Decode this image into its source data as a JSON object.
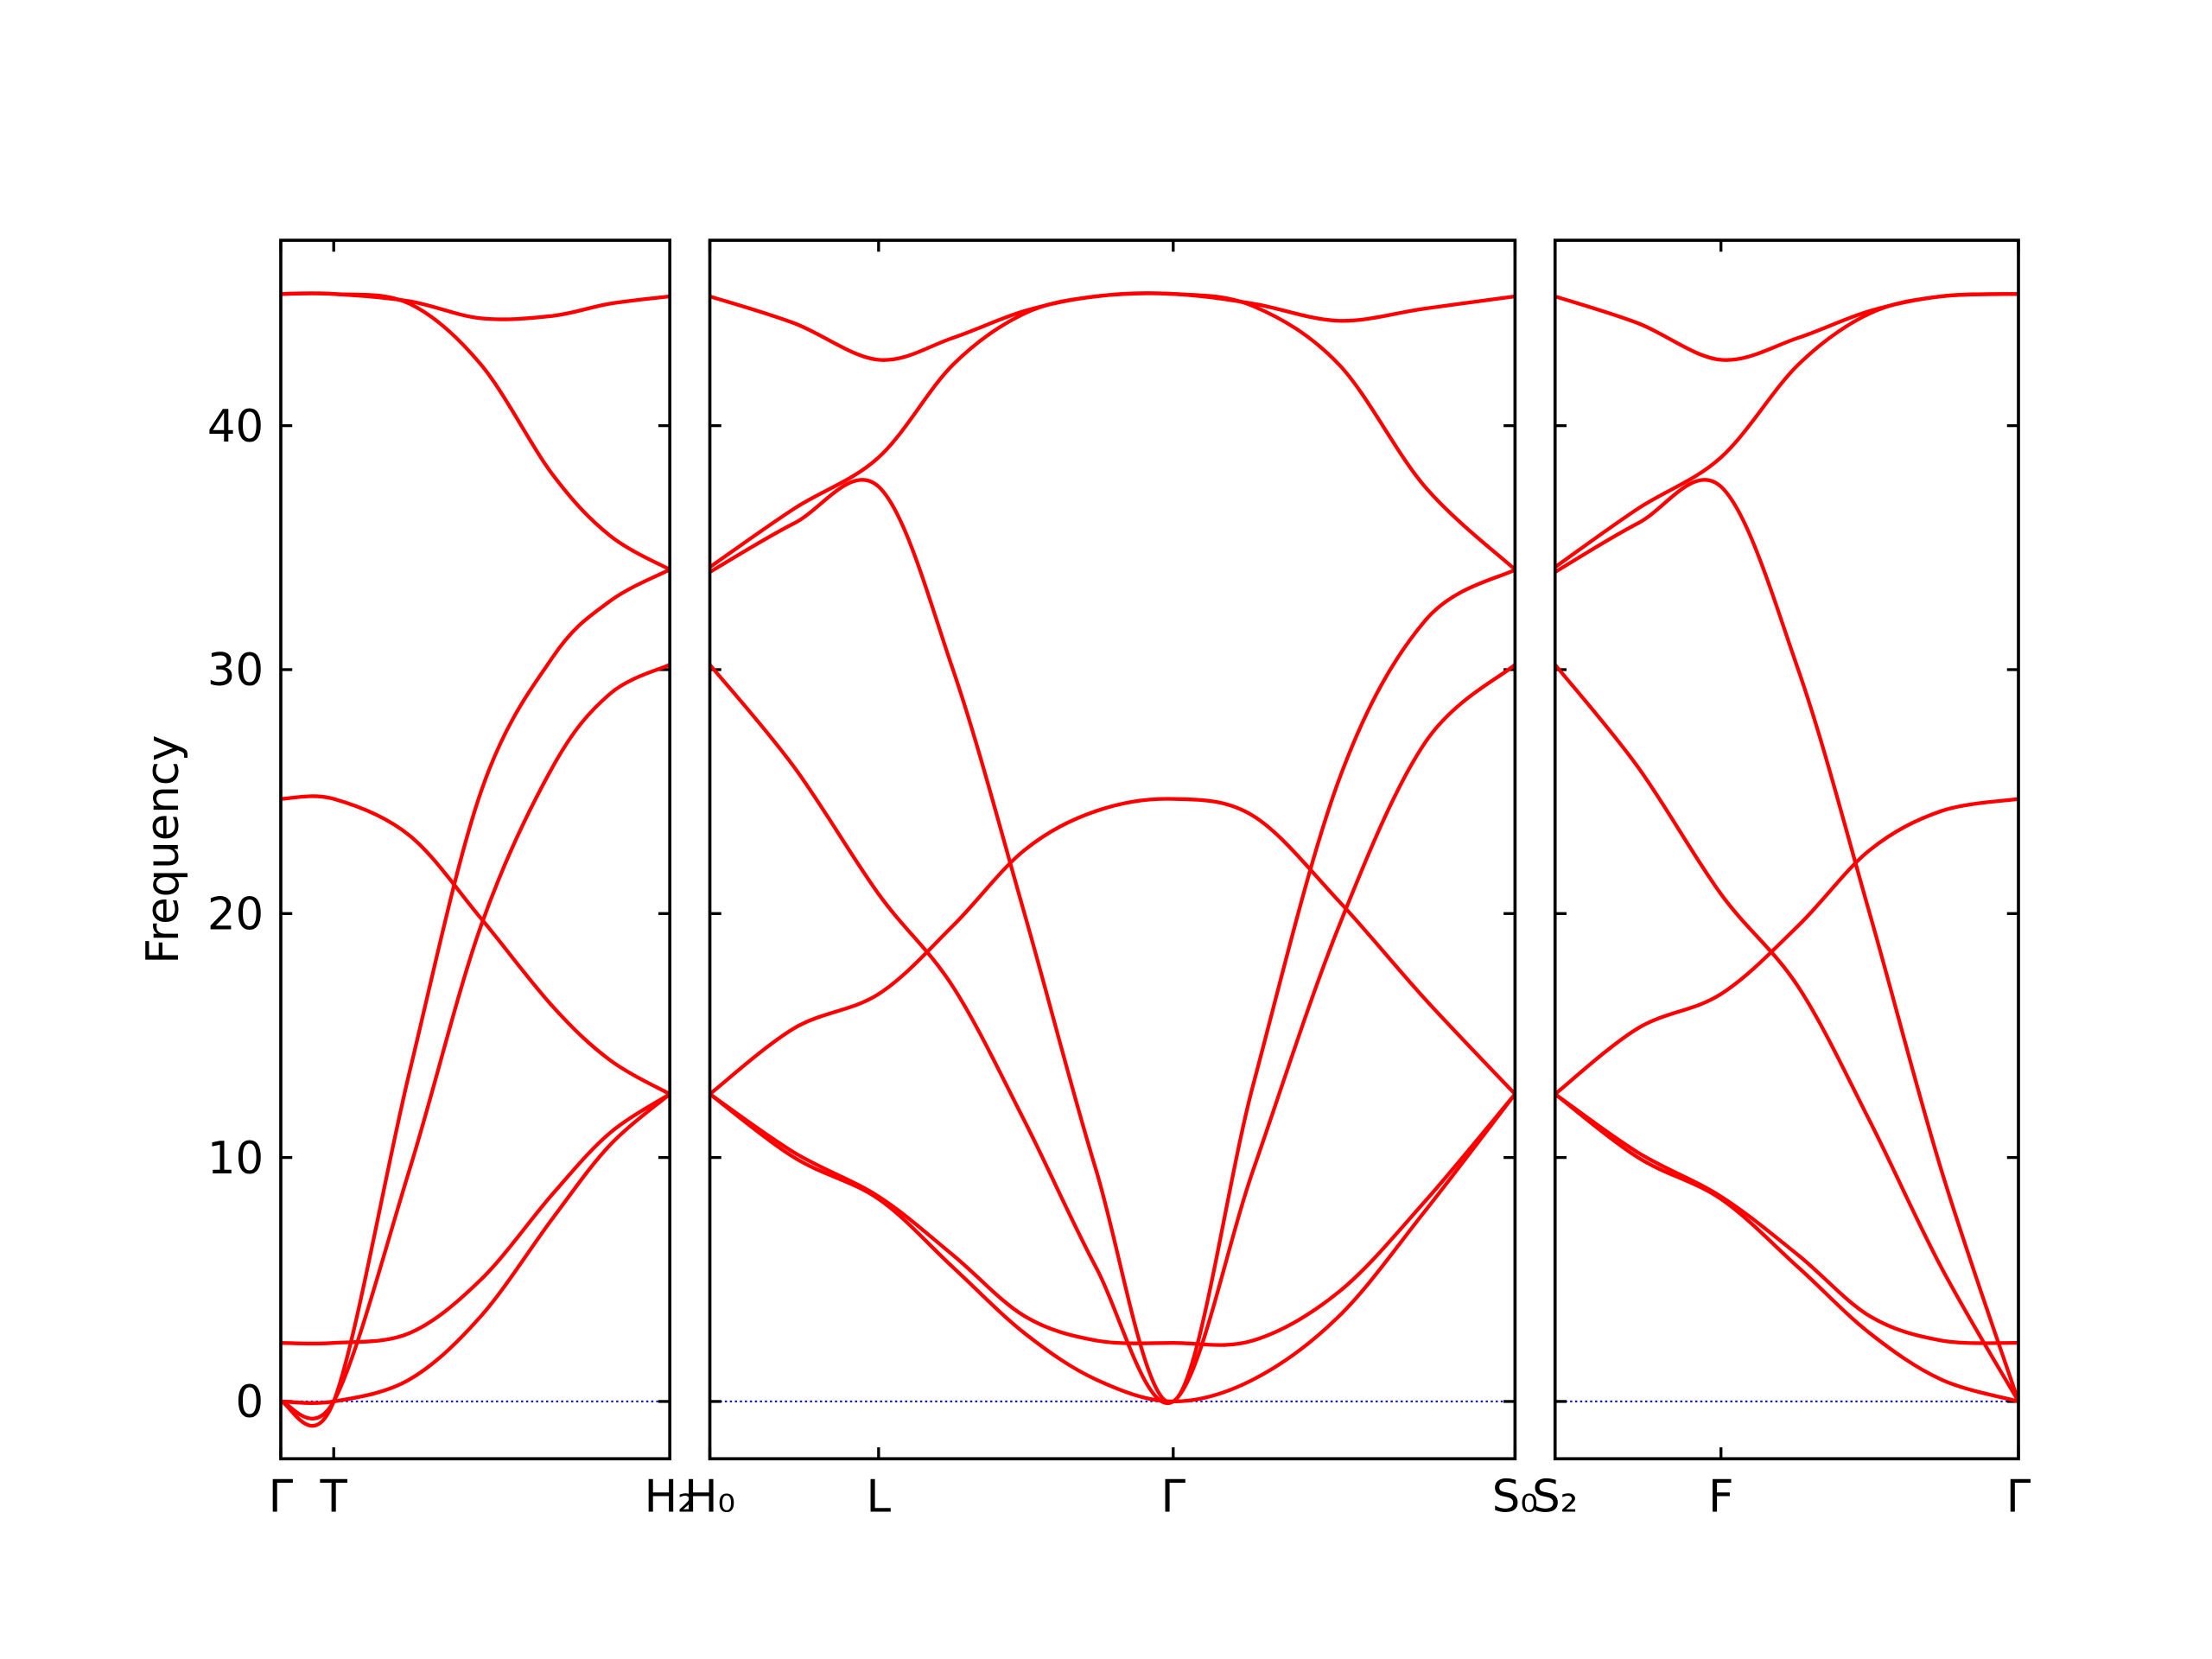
{
  "chart_data": [
    {
      "type": "line",
      "ylabel": "Frequency",
      "show_ytick_labels": true,
      "line_color": "#ff0000",
      "zero_line_color": "#0000ff",
      "xlim": [
        0,
        2.72
      ],
      "ylim": [
        -2.35,
        47.6
      ],
      "xticks": [
        {
          "value": 0,
          "label": "Γ"
        },
        {
          "value": 0.37,
          "label": "T"
        },
        {
          "value": 2.72,
          "label": "H₂"
        }
      ],
      "yticks": [
        0,
        10,
        20,
        30,
        40
      ],
      "x": [
        0,
        0.37,
        0.9,
        1.4,
        1.9,
        2.3,
        2.72
      ],
      "series": [
        {
          "values": [
            0,
            0,
            0.9,
            3.5,
            7.5,
            10.5,
            12.6
          ]
        },
        {
          "values": [
            2.4,
            2.4,
            2.8,
            5.0,
            8.5,
            11.0,
            12.6
          ]
        },
        {
          "values": [
            24.7,
            24.7,
            23.2,
            19.8,
            16.2,
            14.0,
            12.6
          ]
        },
        {
          "values": [
            0,
            0,
            9.5,
            19.5,
            26.0,
            29.0,
            30.2
          ]
        },
        {
          "values": [
            0,
            0,
            13.5,
            25.0,
            30.5,
            32.8,
            34.1
          ]
        },
        {
          "values": [
            45.4,
            45.4,
            45.0,
            42.5,
            38.0,
            35.5,
            34.1
          ]
        },
        {
          "values": [
            45.4,
            45.4,
            45.1,
            44.4,
            44.5,
            45.0,
            45.3
          ]
        }
      ]
    },
    {
      "type": "line",
      "show_ytick_labels": false,
      "line_color": "#ff0000",
      "zero_line_color": "#0000ff",
      "xlim": [
        0,
        5.63
      ],
      "ylim": [
        -2.35,
        47.6
      ],
      "xticks": [
        {
          "value": 0,
          "label": "H₀"
        },
        {
          "value": 1.18,
          "label": "L"
        },
        {
          "value": 3.24,
          "label": "Γ"
        },
        {
          "value": 5.63,
          "label": "S₀"
        }
      ],
      "yticks": [
        0,
        10,
        20,
        30,
        40
      ],
      "x": [
        0,
        0.59,
        1.18,
        1.7,
        2.2,
        2.7,
        3.24,
        3.8,
        4.4,
        5.0,
        5.63
      ],
      "series": [
        {
          "values": [
            12.6,
            10.0,
            8.3,
            5.5,
            2.8,
            0.9,
            0,
            0.9,
            3.5,
            7.8,
            12.6
          ]
        },
        {
          "values": [
            12.6,
            10.2,
            8.4,
            6.0,
            3.5,
            2.5,
            2.4,
            2.5,
            4.5,
            8.2,
            12.6
          ]
        },
        {
          "values": [
            12.6,
            15.3,
            16.7,
            19.5,
            22.6,
            24.2,
            24.7,
            24.0,
            20.5,
            16.5,
            12.6
          ]
        },
        {
          "values": [
            30.2,
            26.0,
            20.8,
            17.0,
            11.5,
            5.5,
            0,
            9.5,
            19.5,
            27.0,
            30.2
          ]
        },
        {
          "values": [
            34.0,
            36.0,
            37.5,
            30.0,
            20.0,
            9.5,
            0,
            13.0,
            25.5,
            32.0,
            34.1
          ]
        },
        {
          "values": [
            34.2,
            36.6,
            38.7,
            42.5,
            44.6,
            45.3,
            45.4,
            44.9,
            42.5,
            37.5,
            34.1
          ]
        },
        {
          "values": [
            45.3,
            44.2,
            42.7,
            43.6,
            44.7,
            45.3,
            45.4,
            45.0,
            44.3,
            44.8,
            45.3
          ]
        }
      ]
    },
    {
      "type": "line",
      "show_ytick_labels": false,
      "line_color": "#ff0000",
      "zero_line_color": "#0000ff",
      "xlim": [
        0,
        3.24
      ],
      "ylim": [
        -2.35,
        47.6
      ],
      "xticks": [
        {
          "value": 0,
          "label": "S₂"
        },
        {
          "value": 1.16,
          "label": "F"
        },
        {
          "value": 3.24,
          "label": "Γ"
        }
      ],
      "yticks": [
        0,
        10,
        20,
        30,
        40
      ],
      "x": [
        0,
        0.58,
        1.16,
        1.7,
        2.2,
        2.7,
        3.24
      ],
      "series": [
        {
          "values": [
            12.6,
            10.0,
            8.3,
            5.5,
            2.8,
            0.9,
            0
          ]
        },
        {
          "values": [
            12.6,
            10.2,
            8.4,
            6.0,
            3.5,
            2.5,
            2.4
          ]
        },
        {
          "values": [
            12.6,
            15.3,
            16.7,
            19.5,
            22.6,
            24.2,
            24.7
          ]
        },
        {
          "values": [
            30.2,
            26.0,
            20.8,
            17.0,
            11.5,
            5.5,
            0
          ]
        },
        {
          "values": [
            34.0,
            36.0,
            37.5,
            30.0,
            20.0,
            9.5,
            0
          ]
        },
        {
          "values": [
            34.2,
            36.6,
            38.7,
            42.5,
            44.6,
            45.3,
            45.4
          ]
        },
        {
          "values": [
            45.3,
            44.2,
            42.7,
            43.6,
            44.7,
            45.3,
            45.4
          ]
        }
      ]
    }
  ]
}
